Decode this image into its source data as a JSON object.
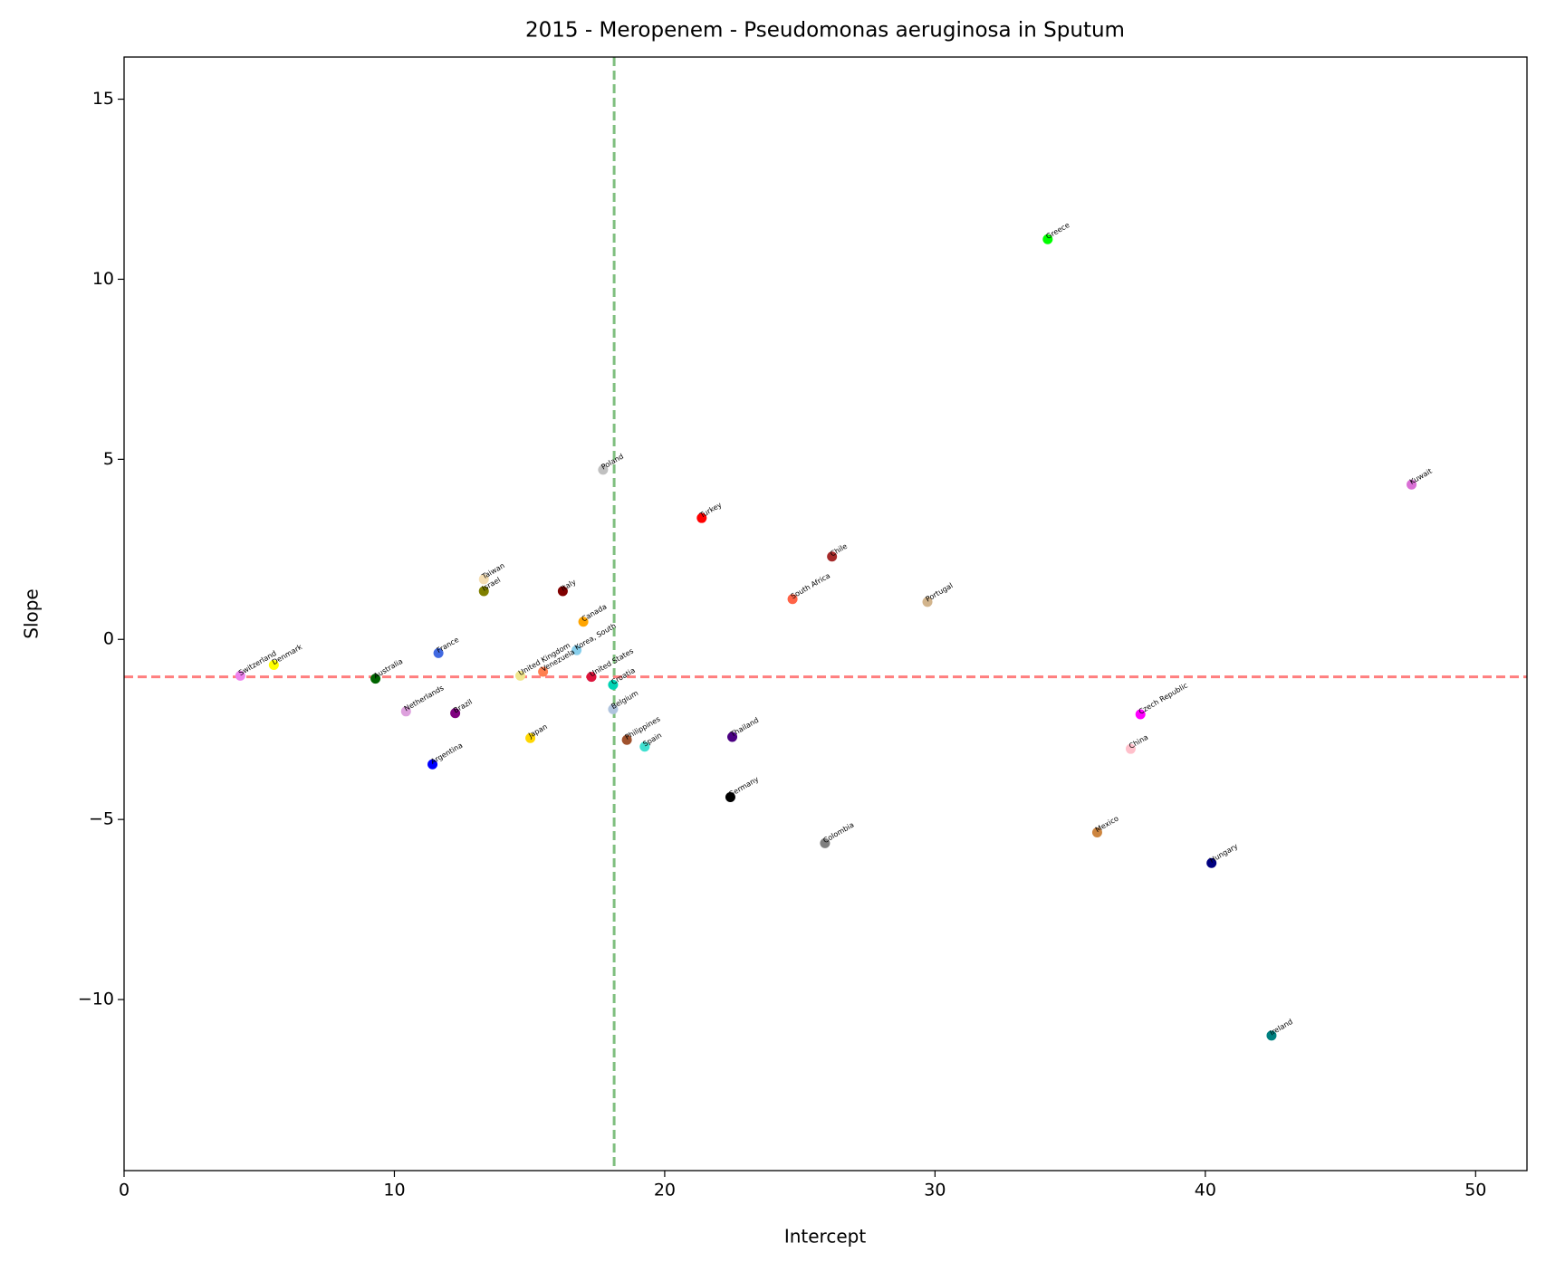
{
  "chart_data": {
    "type": "scatter",
    "title": "2015 - Meropenem - Pseudomonas aeruginosa in Sputum",
    "x_label": "Intercept",
    "y_label": "Slope",
    "point_labels": [
      "Greece",
      "Kuwait",
      "Poland",
      "Turkey",
      "Chile",
      "South Africa",
      "Portugal",
      "Taiwan",
      "Israel",
      "Italy",
      "Canada",
      "Korea, South",
      "United Kingdom",
      "Venezuela",
      "United States",
      "Croatia",
      "Belgium",
      "Philippines",
      "Spain",
      "Thailand",
      "Germany",
      "Colombia",
      "France",
      "Switzerland",
      "Denmark",
      "Australia",
      "Netherlands",
      "Brazil",
      "Argentina",
      "Japan",
      "Czech Republic",
      "China",
      "Mexico",
      "Hungary",
      "Ireland"
    ],
    "x": [
      34.17,
      47.63,
      17.72,
      21.37,
      26.19,
      24.73,
      29.72,
      13.31,
      13.31,
      16.23,
      16.99,
      16.74,
      14.66,
      15.5,
      17.29,
      18.09,
      18.09,
      18.6,
      19.26,
      22.5,
      22.43,
      25.93,
      11.63,
      4.3,
      5.54,
      9.3,
      10.43,
      12.25,
      11.41,
      15.03,
      37.6,
      37.24,
      36.0,
      40.23,
      42.45
    ],
    "values": [
      11.11,
      4.3,
      4.71,
      3.37,
      2.3,
      1.12,
      1.04,
      1.67,
      1.34,
      1.34,
      0.49,
      -0.3,
      -1.01,
      -0.9,
      -1.04,
      -1.26,
      -1.94,
      -2.79,
      -2.98,
      -2.71,
      -4.38,
      -5.66,
      -0.38,
      -1.01,
      -0.71,
      -1.09,
      -2.0,
      -2.05,
      -3.47,
      -2.74,
      -2.08,
      -3.04,
      -5.36,
      -6.21,
      -11.0
    ],
    "colors": [
      "#00ff00",
      "#da70d6",
      "#c0c0c0",
      "#ff0000",
      "#a52a2a",
      "#ff6347",
      "#d2b48c",
      "#f5deb3",
      "#808000",
      "#800000",
      "#ffa500",
      "#87ceeb",
      "#f0e68c",
      "#ff7f50",
      "#dc143c",
      "#00d4b4",
      "#b0c4de",
      "#a0522d",
      "#40e0d0",
      "#4b0082",
      "#000000",
      "#808080",
      "#4169e1",
      "#ee82ee",
      "#ffff00",
      "#006400",
      "#dda0dd",
      "#800080",
      "#0000ff",
      "#ffd700",
      "#ff00ff",
      "#ffc0cb",
      "#cd853f",
      "#000080",
      "#008080"
    ],
    "vline": {
      "value": 18.13,
      "color": "#7fbf7f"
    },
    "hline": {
      "value": -1.04,
      "color": "#ff7f7f"
    },
    "xlim": [
      0,
      51.9
    ],
    "ylim": [
      -14.75,
      16.17
    ],
    "xticks": [
      0,
      10,
      20,
      30,
      40,
      50
    ],
    "yticks": [
      {
        "value": -10,
        "label": "−10"
      },
      {
        "value": -5,
        "label": "−5"
      },
      0,
      5,
      10,
      15
    ]
  }
}
